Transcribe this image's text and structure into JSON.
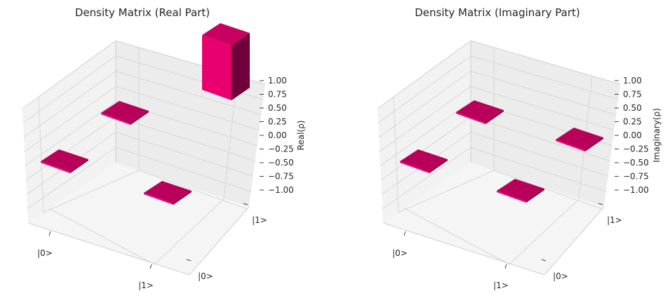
{
  "chart_data": [
    {
      "type": "bar3d",
      "title": "Density Matrix (Real Part)",
      "zlabel": "Real(ρ)",
      "x_ticks": [
        "|0>",
        "|1>"
      ],
      "y_ticks": [
        "|0>",
        "|1>"
      ],
      "z_ticks": [
        "1.00",
        "0.75",
        "0.50",
        "0.25",
        "0.00",
        "−0.25",
        "−0.50",
        "−0.75",
        "−1.00"
      ],
      "zlim": [
        -1,
        1
      ],
      "cells": [
        {
          "row": "|0>",
          "col": "|0>",
          "value": 0.0
        },
        {
          "row": "|0>",
          "col": "|1>",
          "value": 0.0
        },
        {
          "row": "|1>",
          "col": "|0>",
          "value": 0.0
        },
        {
          "row": "|1>",
          "col": "|1>",
          "value": 1.0
        }
      ],
      "colors": {
        "top": "#c8005f",
        "front": "#e8006f",
        "side": "#70003a",
        "flat": "#b8005a"
      }
    },
    {
      "type": "bar3d",
      "title": "Density Matrix (Imaginary Part)",
      "zlabel": "Imaginary(ρ)",
      "x_ticks": [
        "|0>",
        "|1>"
      ],
      "y_ticks": [
        "|0>",
        "|1>"
      ],
      "z_ticks": [
        "1.00",
        "0.75",
        "0.50",
        "0.25",
        "0.00",
        "−0.25",
        "−0.50",
        "−0.75",
        "−1.00"
      ],
      "zlim": [
        -1,
        1
      ],
      "cells": [
        {
          "row": "|0>",
          "col": "|0>",
          "value": 0.0
        },
        {
          "row": "|0>",
          "col": "|1>",
          "value": 0.0
        },
        {
          "row": "|1>",
          "col": "|0>",
          "value": 0.0
        },
        {
          "row": "|1>",
          "col": "|1>",
          "value": 0.0
        }
      ],
      "colors": {
        "top": "#c8005f",
        "front": "#e8006f",
        "side": "#70003a",
        "flat": "#b8005a"
      }
    }
  ]
}
